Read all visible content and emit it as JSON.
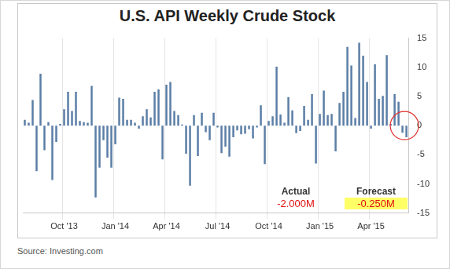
{
  "chart_data": {
    "type": "bar",
    "title": "U.S. API Weekly Crude Stock",
    "categories": [
      null,
      null,
      null,
      null,
      null,
      null,
      null,
      null,
      null,
      null,
      "Oct '13",
      null,
      null,
      null,
      null,
      null,
      null,
      null,
      null,
      null,
      null,
      null,
      null,
      "Jan '14",
      null,
      null,
      null,
      null,
      null,
      null,
      null,
      null,
      null,
      null,
      null,
      null,
      "Apr '14",
      null,
      null,
      null,
      null,
      null,
      null,
      null,
      null,
      null,
      null,
      null,
      null,
      "Jul '14",
      null,
      null,
      null,
      null,
      null,
      null,
      null,
      null,
      null,
      null,
      null,
      null,
      "Oct '14",
      null,
      null,
      null,
      null,
      null,
      null,
      null,
      null,
      null,
      null,
      null,
      null,
      "Jan '15",
      null,
      null,
      null,
      null,
      null,
      null,
      null,
      null,
      null,
      null,
      null,
      null,
      "Apr '15",
      null,
      null,
      null,
      null,
      null,
      null,
      null,
      null,
      null
    ],
    "values": [
      1.0,
      0.5,
      4.4,
      -7.8,
      8.9,
      -4.2,
      0.6,
      -9.3,
      -2.8,
      0.3,
      2.8,
      5.8,
      2.5,
      5.8,
      0.8,
      0.6,
      0.5,
      6.8,
      -12.3,
      -7.2,
      -2.5,
      -5.5,
      -7.2,
      -3.2,
      4.8,
      4.6,
      1.0,
      1.0,
      0.5,
      -0.5,
      1.6,
      2.8,
      1.4,
      5.8,
      6.2,
      -5.8,
      7.0,
      7.5,
      2.5,
      1.8,
      0.2,
      -4.8,
      -10.3,
      1.8,
      -5.2,
      2.2,
      -1.1,
      -2.5,
      2.2,
      -0.3,
      -4.7,
      -3.6,
      -5.3,
      -2.0,
      -0.8,
      -1.5,
      -1.4,
      -0.6,
      -2.2,
      -0.3,
      3.5,
      -6.6,
      0.8,
      1.6,
      10.1,
      1.9,
      0.5,
      4.9,
      2.6,
      -1.3,
      -0.9,
      3.4,
      1.0,
      5.4,
      -6.5,
      2.0,
      6.0,
      1.8,
      2.0,
      -4.4,
      3.9,
      5.8,
      13.5,
      10.3,
      1.3,
      14.2,
      12.0,
      7.5,
      -0.5,
      10.5,
      4.6,
      5.1,
      12.1,
      0.3,
      5.4,
      4.1,
      -1.2,
      -2.0
    ],
    "color": "#5b7ea6",
    "ylim": [
      -15,
      15
    ],
    "yticks": [
      -15,
      -10,
      -5,
      0,
      5,
      10,
      15
    ],
    "grid": true,
    "annotations": [
      {
        "title": "Actual",
        "text": "-2.000M"
      },
      {
        "title": "Forecast",
        "text": "-0.250M"
      }
    ],
    "source": "Source: Investing.com"
  }
}
